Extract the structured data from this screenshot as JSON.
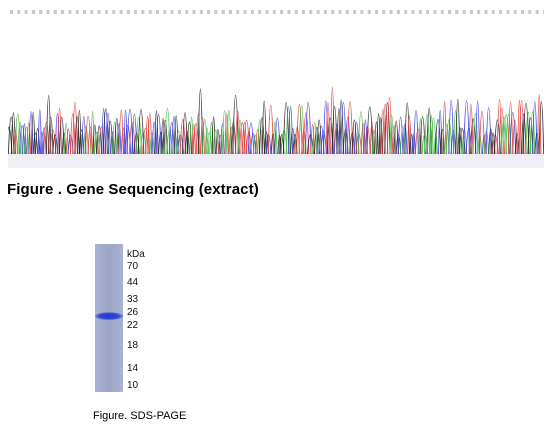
{
  "sequencing_figure": {
    "caption": "Figure . Gene Sequencing (extract)",
    "base_colors": {
      "A": "#3dbb3d",
      "C": "#3a3ae0",
      "G": "#222222",
      "T": "#e03a3a"
    },
    "tick_color": "#c8c8c8"
  },
  "gel_figure": {
    "caption": "Figure. SDS-PAGE",
    "unit_label": "kDa",
    "markers": [
      {
        "label": "70",
        "kda": 70
      },
      {
        "label": "44",
        "kda": 44
      },
      {
        "label": "33",
        "kda": 33
      },
      {
        "label": "26",
        "kda": 26
      },
      {
        "label": "22",
        "kda": 22
      },
      {
        "label": "18",
        "kda": 18
      },
      {
        "label": "14",
        "kda": 14
      },
      {
        "label": "10",
        "kda": 10
      }
    ],
    "band_kda": 25,
    "lane_color": "#9ea8c8",
    "band_color": "#2a3fcf"
  }
}
